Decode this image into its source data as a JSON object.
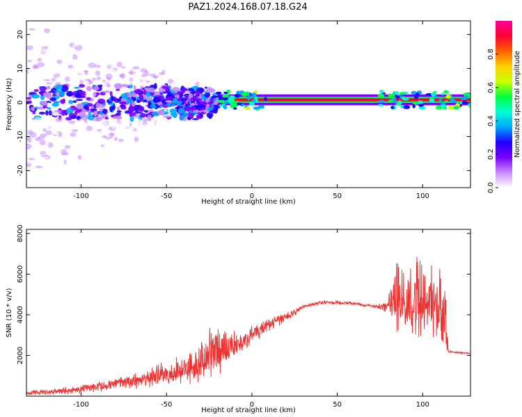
{
  "figure": {
    "title": "PAZ1.2024.168.07.18.G24"
  },
  "chart_data": [
    {
      "type": "heatmap",
      "title": "PAZ1.2024.168.07.18.G24",
      "xlabel": "Height of straight line (km)",
      "ylabel": "Frequency (Hz)",
      "xlim": [
        -132,
        128
      ],
      "ylim": [
        -25,
        24
      ],
      "x_ticks": [
        -100,
        -50,
        0,
        50,
        100
      ],
      "y_ticks": [
        -20,
        -10,
        0,
        10,
        20
      ],
      "colorbar": {
        "label": "Normalized spectral amplitude",
        "range": [
          0.0,
          1.0
        ],
        "ticks": [
          0.0,
          0.2,
          0.4,
          0.6,
          0.8
        ],
        "tick_labels": [
          "0.0",
          "0.2",
          "0.4",
          "0.6",
          "0.8"
        ],
        "colors": [
          "#ffffff",
          "#c88cff",
          "#7a00ff",
          "#2000ff",
          "#00a8ff",
          "#00ffd0",
          "#00ff40",
          "#c8ff00",
          "#ffd000",
          "#ff6000",
          "#ff0030",
          "#ff00a0"
        ]
      },
      "description_regions": [
        {
          "x_range": [
            -132,
            -20
          ],
          "freq_spread_hz": [
            -25,
            24
          ],
          "amplitude": "low, noisy"
        },
        {
          "x_range": [
            -20,
            128
          ],
          "freq_center_hz": 0.8,
          "freq_halfwidth_hz": 0.8,
          "amplitude": "high, narrow band"
        }
      ]
    },
    {
      "type": "line",
      "xlabel": "Height of straight line (km)",
      "ylabel": "SNR (10 * v/v)",
      "xlim": [
        -132,
        128
      ],
      "ylim": [
        0,
        8200
      ],
      "x_ticks": [
        -100,
        -50,
        0,
        50,
        100
      ],
      "y_ticks": [
        2000,
        4000,
        6000,
        8000
      ],
      "series": [
        {
          "color": "#ee3333",
          "x": [
            -132,
            -120,
            -110,
            -100,
            -90,
            -80,
            -70,
            -60,
            -50,
            -40,
            -30,
            -25,
            -20,
            -15,
            -10,
            -5,
            0,
            5,
            10,
            15,
            20,
            25,
            30,
            40,
            50,
            60,
            70,
            75,
            80,
            85,
            90,
            95,
            100,
            105,
            110,
            113,
            115,
            120,
            128
          ],
          "y": [
            150,
            200,
            250,
            350,
            450,
            600,
            750,
            900,
            1100,
            1300,
            1700,
            2000,
            2300,
            2400,
            2500,
            2700,
            3000,
            3300,
            3500,
            3700,
            3900,
            4100,
            4400,
            4600,
            4600,
            4550,
            4450,
            4400,
            4400,
            4800,
            4500,
            4800,
            4600,
            4500,
            4200,
            4000,
            2200,
            2150,
            2100
          ],
          "noise_envelope": [
            120,
            150,
            200,
            250,
            300,
            350,
            450,
            550,
            650,
            800,
            1200,
            1500,
            1500,
            900,
            700,
            600,
            550,
            500,
            450,
            350,
            250,
            180,
            120,
            100,
            100,
            100,
            100,
            150,
            500,
            2500,
            2000,
            2500,
            2400,
            2000,
            2400,
            2500,
            60,
            50,
            50
          ]
        }
      ]
    }
  ],
  "colors": {
    "line": "#ee3333",
    "axes": "#000000"
  }
}
